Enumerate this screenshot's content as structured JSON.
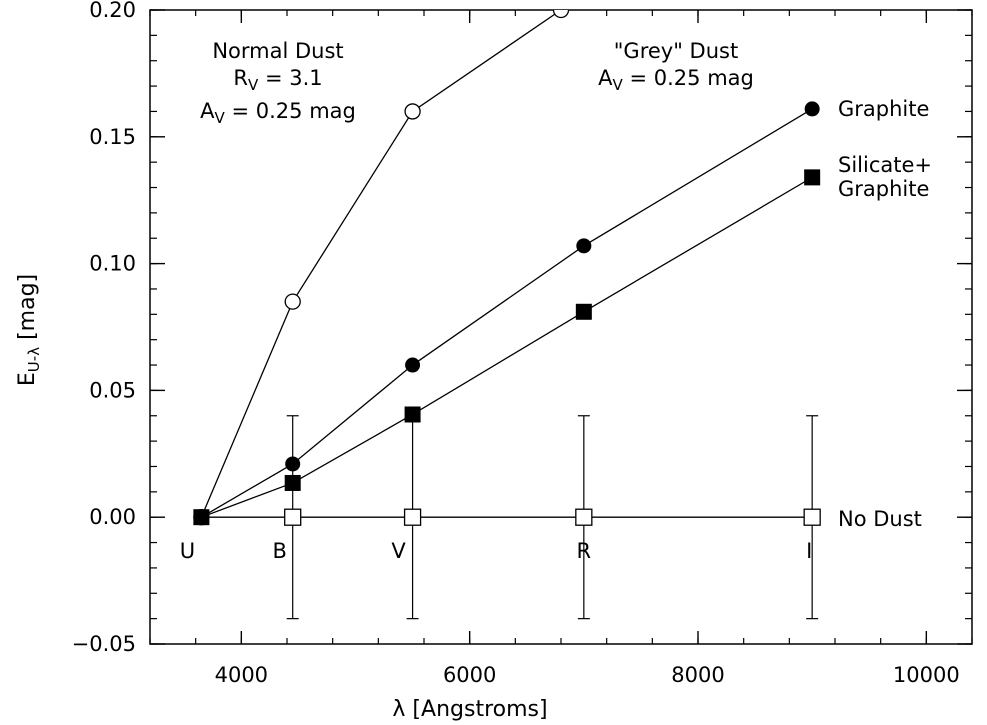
{
  "chart_data": {
    "type": "scatter",
    "xlabel": "λ [Angstroms]",
    "ylabel": {
      "base": "E",
      "sub": "U-λ",
      "rest": " [mag]"
    },
    "xlim": [
      3200,
      10400
    ],
    "ylim": [
      -0.05,
      0.2
    ],
    "x_ticks": [
      4000,
      6000,
      8000,
      10000
    ],
    "x_tick_labels": [
      "4000",
      "6000",
      "8000",
      "10000"
    ],
    "y_ticks": [
      -0.05,
      0,
      0.05,
      0.1,
      0.15,
      0.2
    ],
    "y_tick_labels": [
      "−0.05",
      "0.00",
      "0.05",
      "0.10",
      "0.15",
      "0.20"
    ],
    "x_minor_step": 400,
    "y_minor_step": 0.01,
    "grid": false,
    "series": [
      {
        "name": "Normal Dust",
        "marker": "open-circle",
        "x": [
          3650,
          4450,
          5500,
          6800
        ],
        "y": [
          0.0,
          0.085,
          0.16,
          0.2
        ]
      },
      {
        "name": "Graphite",
        "marker": "filled-circle",
        "x": [
          3650,
          4450,
          5500,
          7000,
          9000
        ],
        "y": [
          0.0,
          0.021,
          0.06,
          0.107,
          0.161
        ]
      },
      {
        "name": "Silicate+ Graphite",
        "marker": "filled-square",
        "x": [
          3650,
          4450,
          5500,
          7000,
          9000
        ],
        "y": [
          0.0,
          0.0135,
          0.0405,
          0.081,
          0.134
        ]
      },
      {
        "name": "No Dust",
        "marker": "open-square",
        "x": [
          4450,
          5500,
          7000,
          9000
        ],
        "y": [
          0.0,
          0.0,
          0.0,
          0.0
        ],
        "yerr": 0.04,
        "line_x": [
          3650,
          9000
        ]
      }
    ],
    "band_labels": [
      {
        "text": "U",
        "x": 3650
      },
      {
        "text": "B",
        "x": 4450
      },
      {
        "text": "V",
        "x": 5500
      },
      {
        "text": "R",
        "x": 7000
      },
      {
        "text": "I",
        "x": 9000
      }
    ],
    "annotations": {
      "normal_dust": {
        "title": "Normal Dust",
        "rv_value": "= 3.1",
        "av_value": "= 0.25 mag"
      },
      "grey_dust": {
        "title": "\"Grey\" Dust",
        "av_value": "= 0.25 mag"
      },
      "labels": {
        "graphite": "Graphite",
        "silicate_line1": "Silicate+",
        "silicate_line2": "Graphite",
        "no_dust": "No Dust"
      }
    }
  }
}
